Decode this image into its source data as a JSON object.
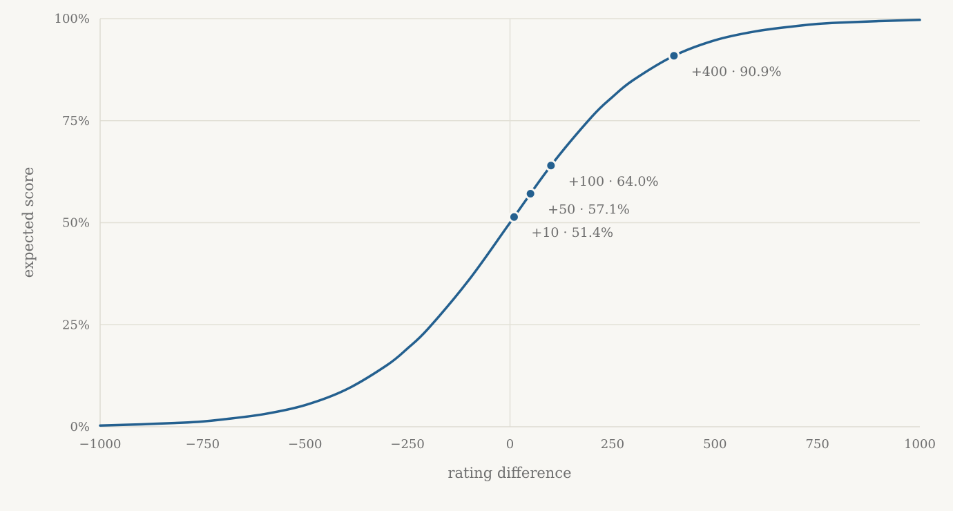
{
  "chart_data": {
    "type": "line",
    "xlabel": "rating difference",
    "ylabel": "expected score",
    "xlim": [
      -1000,
      1000
    ],
    "ylim": [
      0,
      100
    ],
    "x_ticks": [
      -1000,
      -750,
      -500,
      -250,
      0,
      250,
      500,
      750,
      1000
    ],
    "x_tick_labels": [
      "−1000",
      "−750",
      "−500",
      "−250",
      "0",
      "250",
      "500",
      "750",
      "1000"
    ],
    "y_ticks": [
      0,
      25,
      50,
      75,
      100
    ],
    "y_tick_labels": [
      "0%",
      "25%",
      "50%",
      "75%",
      "100%"
    ],
    "grid": "horizontal, plus vertical line at x = 0",
    "series": [
      {
        "color": "#24608f",
        "x": [
          -1000,
          -900,
          -800,
          -750,
          -700,
          -600,
          -500,
          -400,
          -300,
          -250,
          -200,
          -100,
          0,
          100,
          200,
          250,
          300,
          400,
          500,
          600,
          700,
          750,
          800,
          900,
          1000
        ],
        "y": [
          0.3,
          0.6,
          1.0,
          1.3,
          1.8,
          3.1,
          5.3,
          9.1,
          15.1,
          19.2,
          24.0,
          36.0,
          50.0,
          64.0,
          76.0,
          80.8,
          84.9,
          90.9,
          94.7,
          96.9,
          98.2,
          98.7,
          99.0,
          99.4,
          99.7
        ]
      }
    ],
    "points": [
      {
        "x": 10,
        "y": 51.4,
        "label": "+10 · 51.4%"
      },
      {
        "x": 50,
        "y": 57.1,
        "label": "+50 · 57.1%"
      },
      {
        "x": 100,
        "y": 64.0,
        "label": "+100 · 64.0%"
      },
      {
        "x": 400,
        "y": 90.9,
        "label": "+400 · 90.9%"
      }
    ]
  }
}
